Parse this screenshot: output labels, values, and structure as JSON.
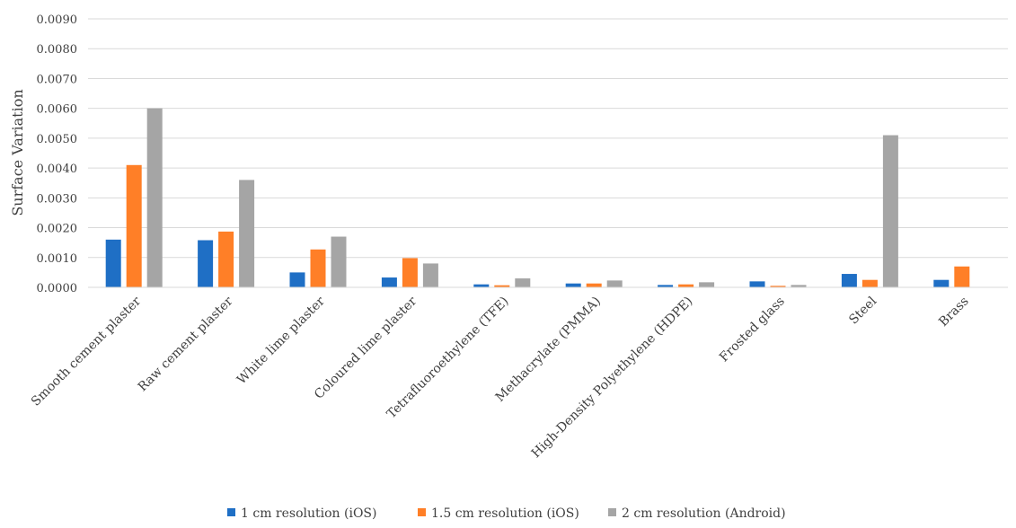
{
  "chart_data": {
    "type": "bar",
    "title": "",
    "xlabel": "",
    "ylabel": "Surface Variation",
    "ylim": [
      0,
      0.009
    ],
    "yticks": [
      "0.0000",
      "0.0010",
      "0.0020",
      "0.0030",
      "0.0040",
      "0.0050",
      "0.0060",
      "0.0070",
      "0.0080",
      "0.0090"
    ],
    "grid": true,
    "legend_position": "bottom",
    "categories": [
      "Smooth cement plaster",
      "Raw cement plaster",
      "White lime plaster",
      "Coloured lime plaster",
      "Tetrafluoroethylene (TFE)",
      "Methacrylate (PMMA)",
      "High-Density Polyethylene (HDPE)",
      "Frosted glass",
      "Steel",
      "Brass"
    ],
    "series": [
      {
        "name": "1 cm resolution (iOS)",
        "color": "#1f6fc5",
        "values": [
          0.0016,
          0.00158,
          0.0005,
          0.00033,
          0.0001,
          0.00013,
          8e-05,
          0.0002,
          0.00045,
          0.00025
        ]
      },
      {
        "name": "1.5 cm resolution (iOS)",
        "color": "#ff7f27",
        "values": [
          0.0041,
          0.00187,
          0.00127,
          0.00098,
          7e-05,
          0.00013,
          0.0001,
          5e-05,
          0.00025,
          0.0007
        ]
      },
      {
        "name": "2 cm resolution (Android)",
        "color": "#a5a5a5",
        "values": [
          0.006,
          0.0036,
          0.0017,
          0.0008,
          0.0003,
          0.00023,
          0.00017,
          8e-05,
          0.0051,
          null
        ]
      }
    ]
  }
}
